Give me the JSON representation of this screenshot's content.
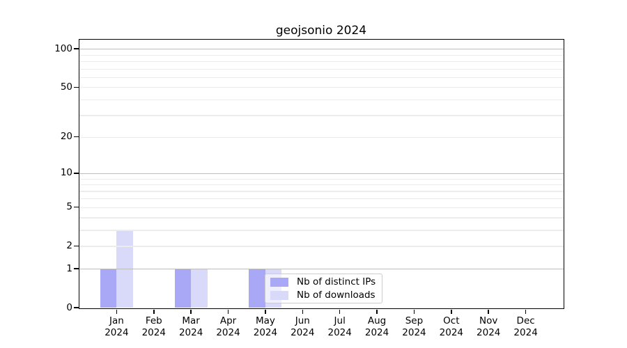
{
  "title": "geojsonio 2024",
  "chart_data": {
    "type": "bar",
    "title": "geojsonio 2024",
    "xlabel": "",
    "ylabel": "",
    "categories": [
      "Jan 2024",
      "Feb 2024",
      "Mar 2024",
      "Apr 2024",
      "May 2024",
      "Jun 2024",
      "Jul 2024",
      "Aug 2024",
      "Sep 2024",
      "Oct 2024",
      "Nov 2024",
      "Dec 2024"
    ],
    "series": [
      {
        "name": "Nb of distinct IPs",
        "color": "#a8a8f7",
        "values": [
          1,
          0,
          1,
          0,
          1,
          0,
          0,
          0,
          0,
          0,
          0,
          0
        ]
      },
      {
        "name": "Nb of downloads",
        "color": "#d9d9fa",
        "values": [
          3,
          0,
          1,
          0,
          1,
          0,
          0,
          0,
          0,
          0,
          0,
          0
        ]
      }
    ],
    "yscale": "log1p",
    "ylim": [
      0,
      118
    ],
    "yticks": [
      0,
      1,
      2,
      5,
      10,
      20,
      50,
      100
    ],
    "grid": true,
    "gridlines": {
      "major": [
        1,
        10,
        100
      ],
      "minor": [
        2,
        3,
        4,
        5,
        6,
        7,
        8,
        9,
        20,
        30,
        40,
        50,
        60,
        70,
        80,
        90
      ],
      "major_color": "#bdbdbd",
      "minor_color": "#ececec"
    },
    "legend": {
      "position": "lower right inside",
      "entries": [
        "Nb of distinct IPs",
        "Nb of downloads"
      ]
    }
  }
}
